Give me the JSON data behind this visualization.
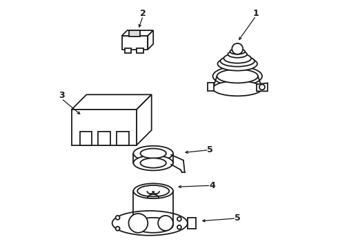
{
  "background_color": "#ffffff",
  "line_color": "#1a1a1a",
  "line_width": 1.3,
  "fig_width": 4.9,
  "fig_height": 3.6,
  "dpi": 100
}
